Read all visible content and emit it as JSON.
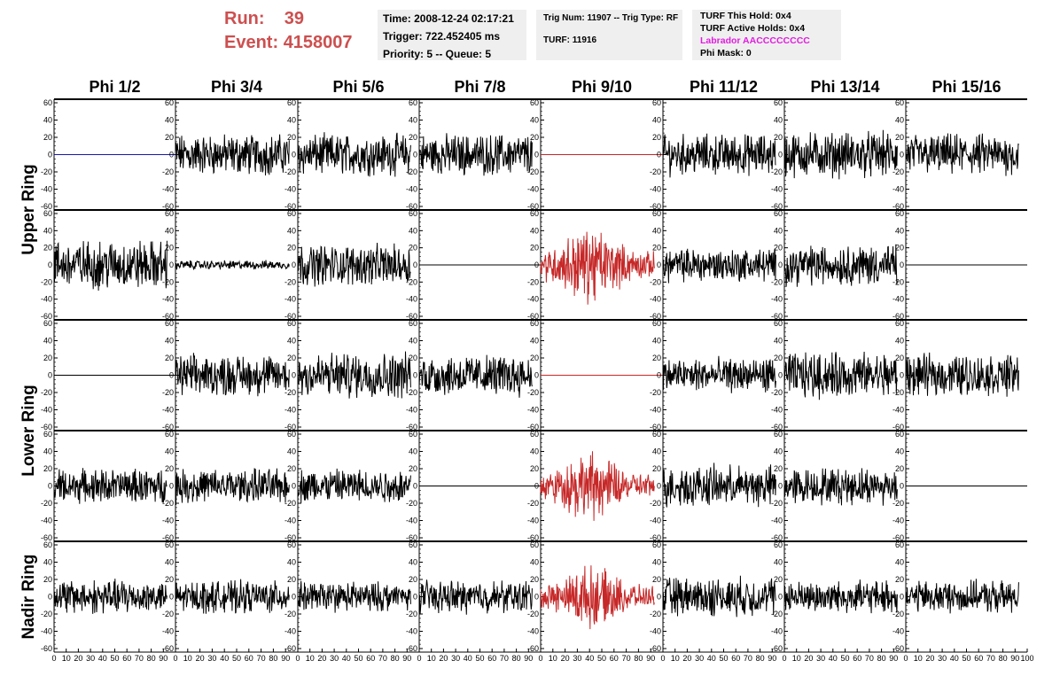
{
  "header": {
    "run_label": "Run:",
    "run_value": "39",
    "event_label": "Event:",
    "event_value": "4158007"
  },
  "info": {
    "time": "Time: 2008-12-24 02:17:21",
    "trigger": "Trigger: 722.452405 ms",
    "priority_queue": "Priority: 5 -- Queue: 5",
    "trig_num_type": "Trig Num: 11907 -- Trig Type: RF",
    "turf": "TURF: 11916",
    "turf_this_hold": "TURF This Hold: 0x4",
    "turf_active_holds": "TURF Active Holds: 0x4",
    "labrador": "Labrador AACCCCCCCC",
    "phi_mask": "Phi Mask: 0"
  },
  "colors": {
    "normal": "#000000",
    "highlight": "#c62828",
    "blue": "#1a1aa8",
    "magenta": "#e11ddf",
    "header_red": "#cd4f4f"
  },
  "chart_data": {
    "type": "line",
    "columns": [
      "Phi 1/2",
      "Phi 3/4",
      "Phi 5/6",
      "Phi 7/8",
      "Phi 9/10",
      "Phi 11/12",
      "Phi 13/14",
      "Phi 15/16"
    ],
    "ring_labels": [
      {
        "label": "Upper Ring",
        "rows": [
          0,
          1
        ]
      },
      {
        "label": "Lower Ring",
        "rows": [
          2,
          3
        ]
      },
      {
        "label": "Nadir Ring",
        "rows": [
          4
        ]
      }
    ],
    "xlim": [
      0,
      100
    ],
    "ylim": [
      -60,
      60
    ],
    "yticks": [
      "60",
      "40",
      "20",
      "0",
      "-20",
      "-40",
      "-60"
    ],
    "xticks": [
      "0",
      "10",
      "20",
      "30",
      "40",
      "50",
      "60",
      "70",
      "80",
      "90",
      "100"
    ],
    "panels": [
      [
        {
          "style": "flat",
          "color": "blue"
        },
        {
          "style": "noise",
          "amp": 18
        },
        {
          "style": "noise",
          "amp": 18
        },
        {
          "style": "noise",
          "amp": 18
        },
        {
          "style": "flat",
          "color": "red"
        },
        {
          "style": "noise",
          "amp": 18
        },
        {
          "style": "noise",
          "amp": 20
        },
        {
          "style": "noise",
          "amp": 18
        }
      ],
      [
        {
          "style": "noise",
          "amp": 22
        },
        {
          "style": "noise",
          "amp": 4
        },
        {
          "style": "noise",
          "amp": 18
        },
        {
          "style": "flat",
          "color": "black"
        },
        {
          "style": "burst",
          "amp": 25,
          "color": "red"
        },
        {
          "style": "noise",
          "amp": 15
        },
        {
          "style": "noise",
          "amp": 18
        },
        {
          "style": "flat",
          "color": "black"
        }
      ],
      [
        {
          "style": "flat",
          "color": "black"
        },
        {
          "style": "noise",
          "amp": 18
        },
        {
          "style": "noise",
          "amp": 20
        },
        {
          "style": "noise",
          "amp": 18
        },
        {
          "style": "flat",
          "color": "red"
        },
        {
          "style": "noise",
          "amp": 15
        },
        {
          "style": "noise",
          "amp": 20
        },
        {
          "style": "noise",
          "amp": 18
        }
      ],
      [
        {
          "style": "noise",
          "amp": 15
        },
        {
          "style": "noise",
          "amp": 15
        },
        {
          "style": "noise",
          "amp": 15
        },
        {
          "style": "flat",
          "color": "black"
        },
        {
          "style": "burst",
          "amp": 22,
          "color": "red"
        },
        {
          "style": "noise",
          "amp": 18
        },
        {
          "style": "noise",
          "amp": 16
        },
        {
          "style": "flat",
          "color": "black"
        }
      ],
      [
        {
          "style": "noise",
          "amp": 15
        },
        {
          "style": "noise",
          "amp": 14
        },
        {
          "style": "noise",
          "amp": 13
        },
        {
          "style": "noise",
          "amp": 14
        },
        {
          "style": "burst",
          "amp": 20,
          "color": "red"
        },
        {
          "style": "noise",
          "amp": 17
        },
        {
          "style": "noise",
          "amp": 14
        },
        {
          "style": "noise",
          "amp": 14
        }
      ]
    ]
  }
}
